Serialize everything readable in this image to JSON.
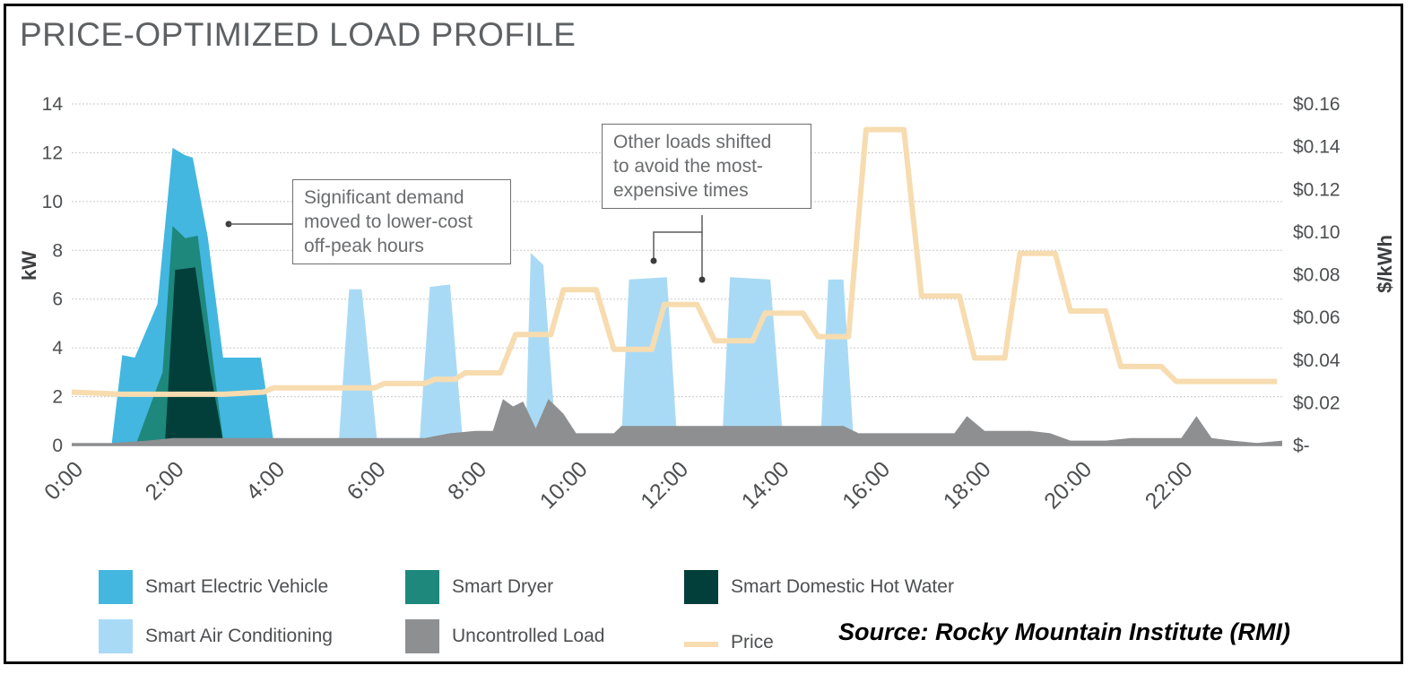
{
  "title": "PRICE-OPTIMIZED LOAD PROFILE",
  "source": "Source:  Rocky Mountain Institute (RMI)",
  "annotations": [
    {
      "lines": [
        "Significant",
        "demand",
        "moved to lower-cost",
        "off-peak hours"
      ],
      "display": [
        "Significant demand",
        "moved to lower-cost",
        "off-peak hours"
      ]
    },
    {
      "display": [
        "Other loads shifted",
        "to avoid the most-",
        "expensive times"
      ]
    }
  ],
  "chart_data": {
    "type": "area",
    "title": "PRICE-OPTIMIZED LOAD PROFILE",
    "xlabel": "",
    "ylabel": "kW",
    "y2label": "$/kWh",
    "xlim": [
      0,
      24
    ],
    "ylim": [
      0,
      14
    ],
    "y2lim": [
      0,
      0.16
    ],
    "x_tick_labels": [
      "0:00",
      "2:00",
      "4:00",
      "6:00",
      "8:00",
      "10:00",
      "12:00",
      "14:00",
      "16:00",
      "18:00",
      "20:00",
      "22:00"
    ],
    "y_tick_labels": [
      "0",
      "2",
      "4",
      "6",
      "8",
      "10",
      "12",
      "14"
    ],
    "y2_tick_labels": [
      "$-",
      "$0.02",
      "$0.04",
      "$0.06",
      "$0.08",
      "$0.10",
      "$0.12",
      "$0.14",
      "$0.16"
    ],
    "grid": true,
    "legend": "bottom",
    "colors": {
      "Smart Electric Vehicle": "#43b7e0",
      "Smart Dryer": "#1e887d",
      "Smart Domestic Hot Water": "#033f3a",
      "Smart Air Conditioning": "#a9daf5",
      "Uncontrolled Load": "#8e8f91",
      "Price": "#f7dcb0"
    },
    "series": [
      {
        "name": "Smart Electric Vehicle",
        "kind": "area",
        "points": [
          [
            0.8,
            0.2
          ],
          [
            1.0,
            3.7
          ],
          [
            1.25,
            3.6
          ],
          [
            1.7,
            5.8
          ],
          [
            2.0,
            12.2
          ],
          [
            2.25,
            11.9
          ],
          [
            2.4,
            11.8
          ],
          [
            2.7,
            8.5
          ],
          [
            3.0,
            3.6
          ],
          [
            3.75,
            3.6
          ],
          [
            4.0,
            0.2
          ]
        ]
      },
      {
        "name": "Smart Dryer",
        "kind": "area",
        "points": [
          [
            1.3,
            0.2
          ],
          [
            1.8,
            3.0
          ],
          [
            2.0,
            9.0
          ],
          [
            2.25,
            8.5
          ],
          [
            2.5,
            8.6
          ],
          [
            2.8,
            3.5
          ],
          [
            3.0,
            0.2
          ]
        ]
      },
      {
        "name": "Smart Domestic Hot Water",
        "kind": "area",
        "points": [
          [
            1.85,
            0.2
          ],
          [
            2.05,
            7.2
          ],
          [
            2.45,
            7.3
          ],
          [
            2.75,
            3.0
          ],
          [
            3.0,
            0.2
          ]
        ]
      },
      {
        "name": "Smart Air Conditioning",
        "kind": "area",
        "points": [
          [
            5.3,
            0.3
          ],
          [
            5.5,
            6.4
          ],
          [
            5.75,
            6.4
          ],
          [
            6.05,
            0.3
          ],
          [
            6.9,
            0.3
          ],
          [
            7.1,
            6.5
          ],
          [
            7.5,
            6.6
          ],
          [
            7.75,
            0.3
          ],
          [
            9.0,
            0.3
          ],
          [
            9.1,
            7.9
          ],
          [
            9.35,
            7.4
          ],
          [
            9.6,
            0.3
          ],
          [
            10.9,
            0.3
          ],
          [
            11.05,
            6.8
          ],
          [
            11.8,
            6.9
          ],
          [
            12.0,
            0.3
          ],
          [
            12.9,
            0.3
          ],
          [
            13.05,
            6.9
          ],
          [
            13.85,
            6.8
          ],
          [
            14.1,
            0.3
          ],
          [
            14.85,
            0.3
          ],
          [
            15.0,
            6.8
          ],
          [
            15.3,
            6.8
          ],
          [
            15.5,
            0.3
          ]
        ]
      },
      {
        "name": "Uncontrolled Load",
        "kind": "area",
        "points": [
          [
            0,
            0.1
          ],
          [
            0.8,
            0.1
          ],
          [
            1.5,
            0.2
          ],
          [
            2.0,
            0.3
          ],
          [
            2.5,
            0.3
          ],
          [
            3.5,
            0.3
          ],
          [
            4.0,
            0.3
          ],
          [
            5.0,
            0.3
          ],
          [
            5.5,
            0.3
          ],
          [
            6.0,
            0.3
          ],
          [
            7.0,
            0.3
          ],
          [
            7.5,
            0.5
          ],
          [
            8.0,
            0.6
          ],
          [
            8.35,
            0.6
          ],
          [
            8.55,
            1.9
          ],
          [
            8.75,
            1.6
          ],
          [
            8.95,
            1.8
          ],
          [
            9.2,
            0.7
          ],
          [
            9.45,
            1.9
          ],
          [
            9.75,
            1.3
          ],
          [
            10.0,
            0.5
          ],
          [
            10.75,
            0.5
          ],
          [
            10.9,
            0.8
          ],
          [
            12.0,
            0.8
          ],
          [
            12.5,
            0.8
          ],
          [
            13.5,
            0.8
          ],
          [
            15.3,
            0.8
          ],
          [
            15.6,
            0.5
          ],
          [
            16.0,
            0.5
          ],
          [
            17.2,
            0.5
          ],
          [
            17.5,
            0.5
          ],
          [
            17.75,
            1.2
          ],
          [
            18.1,
            0.6
          ],
          [
            19.0,
            0.6
          ],
          [
            19.4,
            0.5
          ],
          [
            19.8,
            0.2
          ],
          [
            20.5,
            0.2
          ],
          [
            21.0,
            0.3
          ],
          [
            22.0,
            0.3
          ],
          [
            22.3,
            1.2
          ],
          [
            22.6,
            0.3
          ],
          [
            23.0,
            0.2
          ],
          [
            23.5,
            0.1
          ],
          [
            24.0,
            0.2
          ]
        ]
      },
      {
        "name": "Price",
        "kind": "line",
        "axis": "y2",
        "points": [
          [
            0,
            0.025
          ],
          [
            1.0,
            0.024
          ],
          [
            1.5,
            0.024
          ],
          [
            2.0,
            0.024
          ],
          [
            3.0,
            0.024
          ],
          [
            3.8,
            0.025
          ],
          [
            4.0,
            0.027
          ],
          [
            5.0,
            0.027
          ],
          [
            6.0,
            0.027
          ],
          [
            6.2,
            0.029
          ],
          [
            7.0,
            0.029
          ],
          [
            7.2,
            0.031
          ],
          [
            7.6,
            0.031
          ],
          [
            7.8,
            0.034
          ],
          [
            8.5,
            0.034
          ],
          [
            8.8,
            0.052
          ],
          [
            9.5,
            0.052
          ],
          [
            9.75,
            0.073
          ],
          [
            10.4,
            0.073
          ],
          [
            10.75,
            0.045
          ],
          [
            11.5,
            0.045
          ],
          [
            11.75,
            0.066
          ],
          [
            12.4,
            0.066
          ],
          [
            12.75,
            0.049
          ],
          [
            13.5,
            0.049
          ],
          [
            13.75,
            0.062
          ],
          [
            14.5,
            0.062
          ],
          [
            14.8,
            0.051
          ],
          [
            15.4,
            0.051
          ],
          [
            15.75,
            0.148
          ],
          [
            16.5,
            0.148
          ],
          [
            16.85,
            0.07
          ],
          [
            17.6,
            0.07
          ],
          [
            17.9,
            0.041
          ],
          [
            18.5,
            0.041
          ],
          [
            18.8,
            0.09
          ],
          [
            19.5,
            0.09
          ],
          [
            19.8,
            0.063
          ],
          [
            20.5,
            0.063
          ],
          [
            20.8,
            0.037
          ],
          [
            21.6,
            0.037
          ],
          [
            21.9,
            0.03
          ],
          [
            23.9,
            0.03
          ]
        ]
      }
    ]
  },
  "legend_items": [
    {
      "label": "Smart Electric Vehicle",
      "color": "#43b7e0",
      "type": "box"
    },
    {
      "label": "Smart Dryer",
      "color": "#1e887d",
      "type": "box"
    },
    {
      "label": "Smart Domestic Hot Water",
      "color": "#033f3a",
      "type": "box"
    },
    {
      "label": "Smart Air Conditioning",
      "color": "#a9daf5",
      "type": "box"
    },
    {
      "label": "Uncontrolled Load",
      "color": "#8e8f91",
      "type": "box"
    },
    {
      "label": "Price",
      "color": "#f7dcb0",
      "type": "line"
    }
  ]
}
